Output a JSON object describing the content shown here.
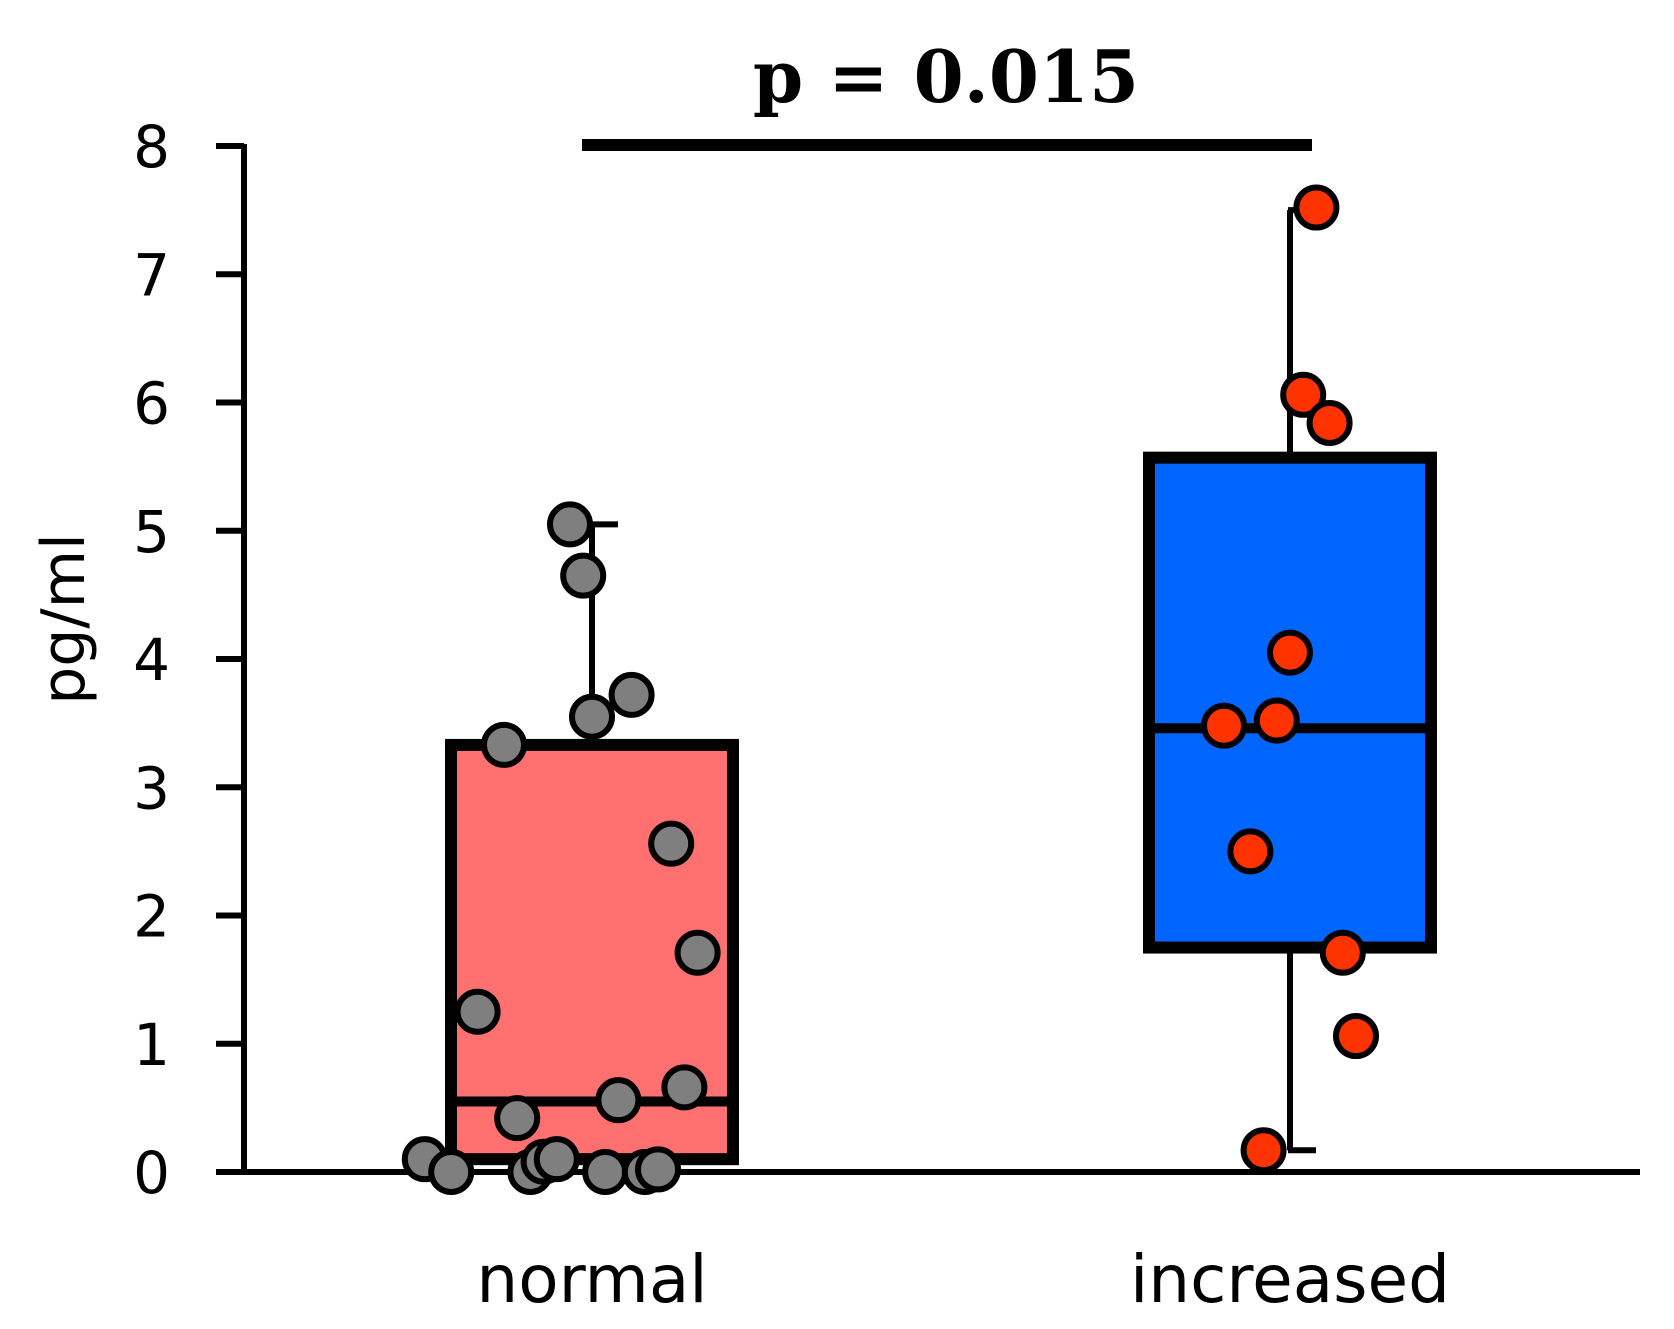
{
  "chart_data": {
    "type": "box",
    "title": "",
    "xlabel": "",
    "ylabel": "pg/ml",
    "ylim": [
      0,
      8
    ],
    "yticks": [
      "0",
      "1",
      "2",
      "3",
      "4",
      "5",
      "6",
      "7",
      "8"
    ],
    "annotation": "p = 0.015",
    "groups": [
      {
        "name": "normal",
        "box_color": "#ff7070",
        "point_color": "#7f7f7f",
        "q1": 0.1,
        "median": 0.55,
        "q3": 3.33,
        "whisker_low": 0.1,
        "whisker_high": 5.05,
        "points": [
          {
            "jitter": -0.38,
            "value": 0.1
          },
          {
            "jitter": -0.32,
            "value": 0.0
          },
          {
            "jitter": -0.26,
            "value": 1.25
          },
          {
            "jitter": -0.2,
            "value": 3.33
          },
          {
            "jitter": -0.17,
            "value": 0.42
          },
          {
            "jitter": -0.14,
            "value": 0.0
          },
          {
            "jitter": -0.11,
            "value": 0.08
          },
          {
            "jitter": -0.08,
            "value": 0.1
          },
          {
            "jitter": -0.05,
            "value": 5.05
          },
          {
            "jitter": -0.02,
            "value": 4.65
          },
          {
            "jitter": 0.0,
            "value": 3.55
          },
          {
            "jitter": 0.03,
            "value": 0.0
          },
          {
            "jitter": 0.06,
            "value": 0.56
          },
          {
            "jitter": 0.09,
            "value": 3.72
          },
          {
            "jitter": 0.12,
            "value": 0.0
          },
          {
            "jitter": 0.15,
            "value": 0.02
          },
          {
            "jitter": 0.18,
            "value": 2.56
          },
          {
            "jitter": 0.21,
            "value": 0.66
          },
          {
            "jitter": 0.24,
            "value": 1.71
          }
        ]
      },
      {
        "name": "increased",
        "box_color": "#0066ff",
        "point_color": "#ff3300",
        "q1": 1.75,
        "median": 3.46,
        "q3": 5.57,
        "whisker_low": 0.17,
        "whisker_high": 7.5,
        "points": [
          {
            "jitter": -0.15,
            "value": 3.48
          },
          {
            "jitter": -0.09,
            "value": 2.5
          },
          {
            "jitter": -0.06,
            "value": 0.17
          },
          {
            "jitter": -0.03,
            "value": 3.52
          },
          {
            "jitter": 0.0,
            "value": 4.05
          },
          {
            "jitter": 0.03,
            "value": 6.06
          },
          {
            "jitter": 0.06,
            "value": 7.52
          },
          {
            "jitter": 0.09,
            "value": 5.84
          },
          {
            "jitter": 0.12,
            "value": 1.71
          },
          {
            "jitter": 0.15,
            "value": 1.06
          }
        ]
      }
    ]
  }
}
